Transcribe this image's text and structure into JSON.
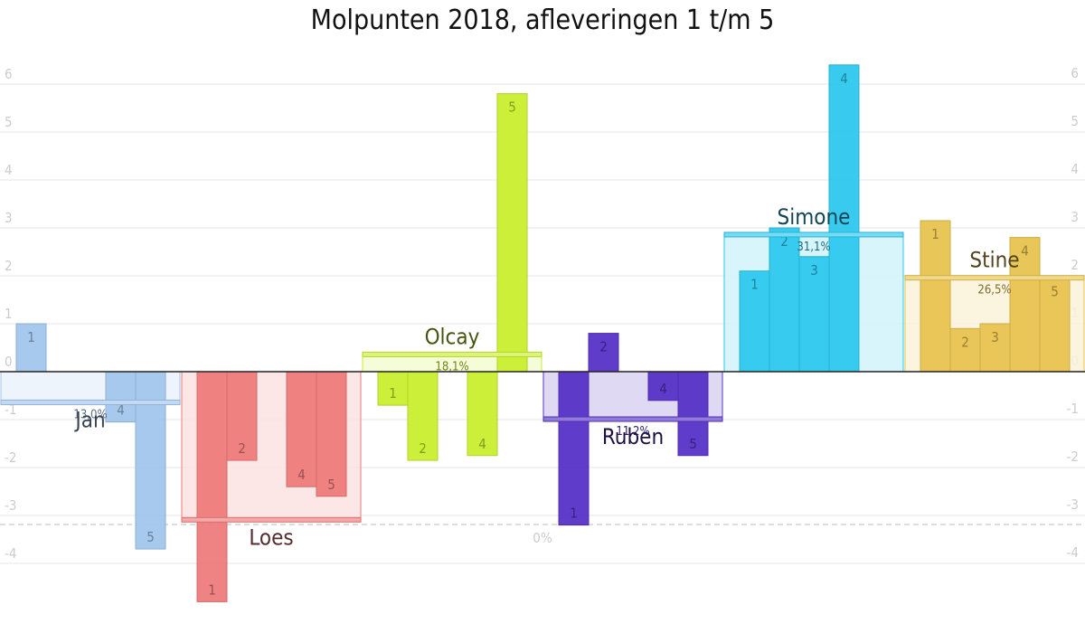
{
  "chart_data": {
    "type": "bar",
    "title": "Molpunten 2018, afleveringen 1 t/m 5",
    "left_axis": {
      "ticks": [
        "6",
        "5",
        "4",
        "3",
        "2",
        "1",
        "0",
        "-1",
        "-2",
        "-3",
        "-4"
      ],
      "min": -4.5,
      "max": 6.5
    },
    "right_axis": {
      "ticks": [
        "6",
        "5",
        "4",
        "3",
        "2",
        "1",
        "0",
        "-1",
        "-2",
        "-3",
        "-4"
      ]
    },
    "zero_percent_label": "0%",
    "grid": true,
    "series": [
      {
        "name": "Jan",
        "color": "#a2c6ec",
        "episodes": [
          "1",
          "4",
          "5"
        ],
        "values": [
          1.0,
          -1.05,
          -3.7
        ],
        "average": -0.65,
        "average_label": "13,0%"
      },
      {
        "name": "Loes",
        "color": "#ee7b7b",
        "episodes": [
          "1",
          "2",
          "4",
          "5"
        ],
        "values": [
          -4.8,
          -1.85,
          -2.4,
          -2.6
        ],
        "average": -3.1,
        "average_label": ""
      },
      {
        "name": "Olcay",
        "color": "#c9ef2f",
        "episodes": [
          "1",
          "2",
          "4",
          "5"
        ],
        "values": [
          -0.7,
          -1.85,
          -1.75,
          5.8
        ],
        "average": 0.35,
        "average_label": "18,1%"
      },
      {
        "name": "Ruben",
        "color": "#5632c6",
        "episodes": [
          "1",
          "2",
          "4",
          "5"
        ],
        "values": [
          -3.2,
          0.8,
          -0.6,
          -1.75
        ],
        "average": -1.0,
        "average_label": "11,2%"
      },
      {
        "name": "Simone",
        "color": "#2dc8ee",
        "episodes": [
          "1",
          "2",
          "3",
          "4"
        ],
        "values": [
          2.1,
          3.0,
          2.4,
          6.4
        ],
        "average": 2.85,
        "average_label": "31,1%"
      },
      {
        "name": "Stine",
        "color": "#e8c34f",
        "episodes": [
          "1",
          "2",
          "3",
          "4",
          "5"
        ],
        "values": [
          3.15,
          0.9,
          1.0,
          2.8,
          1.95
        ],
        "average": 1.95,
        "average_label": "26,5%"
      }
    ]
  }
}
